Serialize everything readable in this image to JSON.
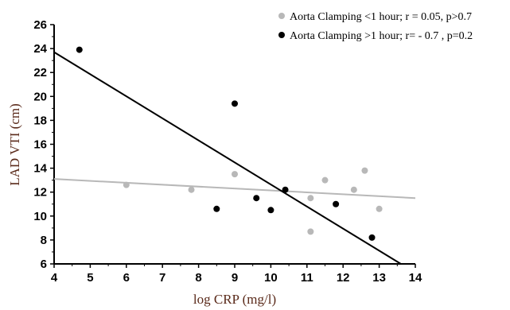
{
  "chart_data": {
    "type": "scatter",
    "xlabel": "log CRP (mg/l)",
    "ylabel": "LAD VTI (cm)",
    "xlim": [
      4,
      14
    ],
    "ylim": [
      6,
      26
    ],
    "x_ticks": [
      4,
      5,
      6,
      7,
      8,
      9,
      10,
      11,
      12,
      13,
      14
    ],
    "y_ticks": [
      6,
      8,
      10,
      12,
      14,
      16,
      18,
      20,
      22,
      24,
      26
    ],
    "grid": false,
    "legend_position": "top-right",
    "series": [
      {
        "name": "Aorta Clamping <1 hour; r = 0.05, p>0.7",
        "color": "#b8b8b8",
        "points": [
          {
            "x": 6.0,
            "y": 12.6
          },
          {
            "x": 7.8,
            "y": 12.2
          },
          {
            "x": 9.0,
            "y": 13.5
          },
          {
            "x": 11.1,
            "y": 8.7
          },
          {
            "x": 11.1,
            "y": 11.5
          },
          {
            "x": 11.5,
            "y": 13.0
          },
          {
            "x": 12.3,
            "y": 12.2
          },
          {
            "x": 12.6,
            "y": 13.8
          },
          {
            "x": 13.0,
            "y": 10.6
          }
        ],
        "trend": {
          "x0": 4,
          "y0": 13.1,
          "x1": 14,
          "y1": 11.5
        }
      },
      {
        "name": "Aorta Clamping >1 hour; r= -  0.7 , p=0.2",
        "color": "#000000",
        "points": [
          {
            "x": 4.7,
            "y": 23.9
          },
          {
            "x": 8.5,
            "y": 10.6
          },
          {
            "x": 9.0,
            "y": 19.4
          },
          {
            "x": 9.6,
            "y": 11.5
          },
          {
            "x": 10.0,
            "y": 10.5
          },
          {
            "x": 10.4,
            "y": 12.2
          },
          {
            "x": 11.8,
            "y": 11.0
          },
          {
            "x": 12.8,
            "y": 8.2
          }
        ],
        "trend": {
          "x0": 4,
          "y0": 23.7,
          "x1": 13.6,
          "y1": 6.0
        }
      }
    ]
  }
}
